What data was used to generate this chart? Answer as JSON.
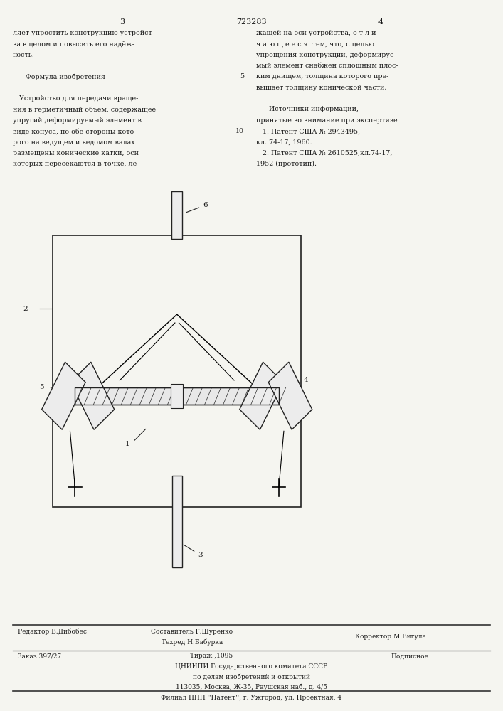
{
  "page_width": 7.07,
  "page_height": 10.0,
  "bg_color": "#f5f5f0",
  "header_num_left": "3",
  "header_num_center": "723283",
  "header_num_right": "4",
  "col_left_text": "ляет упростить конструкцию устройст-\nва в целом и повысить его надёж-\nность.\n\n      Формула изобретения\n\n   Устройство для передачи враще-\nния в герметичный объем, содержащее\nупругий деформируемый элемент в\nвиде конуса, по обе стороны кото-\nрого на ведущем и ведомом валах\nразмещены конические катки, оси\nкоторых пересекаются в точке, ле-",
  "col_right_text": "жащей на оси устройства, о т л и -\nч а ю щ е е с я  тем, что, с целью\nупрощения конструкции, деформируе-\nмый элемент снабжен сплошным плос-\nким днищем, толщина которого пре-\nвышает толщину конической части.\n\n      Источники информации,\nпринятые во внимание при экспертизе\n   1. Патент США № 2943495,\nкл. 74-17, 1960.\n   2. Патент США № 2610525,кл.74-17,\n1952 (прототип).",
  "line_number_5": "5",
  "line_number_10": "10",
  "footer_line1_left": "Редактор В.Дибобес",
  "footer_line1_center": "Составитель Г.Шуренко",
  "footer_line2_center": "Техред Н.Бабурка",
  "footer_line2_right": "Корректор М.Вигула",
  "footer_zakaz": "Заказ 397/27",
  "footer_tirazh": "Тираж ,1095",
  "footer_podpisnoe": "Подписное",
  "footer_tsniipi": "ЦНИИПИ Государственного комитета СССР",
  "footer_po_delam": "по делам изобретений и открытий",
  "footer_address": "113035, Москва, Ж-35, Раушская наб., д. 4/5",
  "footer_filial": "Филиал ППП ''Патент'', г. Ужгород, ул. Проектная, 4"
}
